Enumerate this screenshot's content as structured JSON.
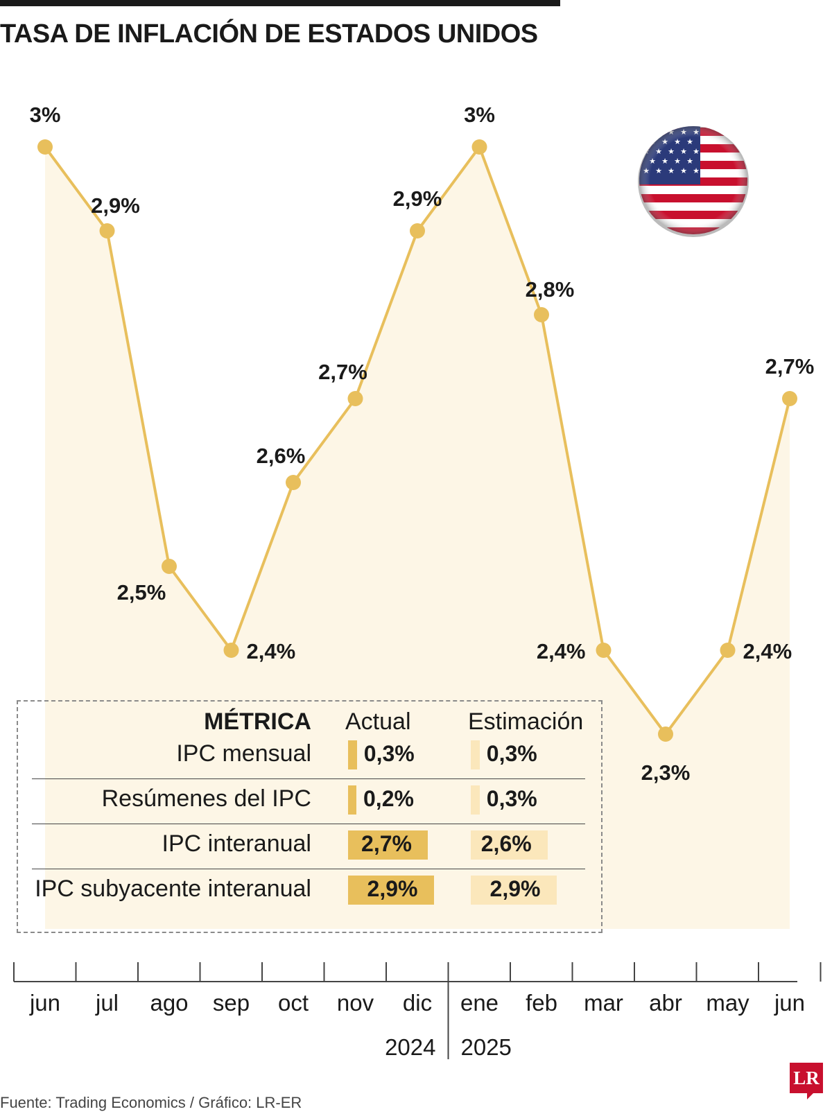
{
  "title": "TASA DE INFLACIÓN DE ESTADOS UNIDOS",
  "chart_data": {
    "type": "area",
    "title": "TASA DE INFLACIÓN DE ESTADOS UNIDOS",
    "categories": [
      "jun",
      "jul",
      "ago",
      "sep",
      "oct",
      "nov",
      "dic",
      "ene",
      "feb",
      "mar",
      "abr",
      "may",
      "jun"
    ],
    "years": [
      "2024",
      "2025"
    ],
    "series": [
      {
        "values": [
          3.0,
          2.9,
          2.5,
          2.4,
          2.6,
          2.7,
          2.9,
          3.0,
          2.8,
          2.4,
          2.3,
          2.4,
          2.7
        ]
      }
    ],
    "value_labels": [
      "3%",
      "2,9%",
      "2,5%",
      "2,4%",
      "2,6%",
      "2,7%",
      "2,9%",
      "3%",
      "2,8%",
      "2,4%",
      "2,3%",
      "2,4%",
      "2,7%"
    ],
    "unit": "%",
    "grid": false,
    "line_color": "#e8bf5c",
    "fill_color": "#fdf6e6"
  },
  "metrics": {
    "header": {
      "metric": "MÉTRICA",
      "actual": "Actual",
      "estimate": "Estimación"
    },
    "rows": [
      {
        "label": "IPC mensual",
        "actual": "0,3%",
        "estimate": "0,3%",
        "actual_value": 0.3,
        "estimate_value": 0.3
      },
      {
        "label": "Resúmenes del IPC",
        "actual": "0,2%",
        "estimate": "0,3%",
        "actual_value": 0.2,
        "estimate_value": 0.3
      },
      {
        "label": "IPC interanual",
        "actual": "2,7%",
        "estimate": "2,6%",
        "actual_value": 2.7,
        "estimate_value": 2.6
      },
      {
        "label": "IPC subyacente interanual",
        "actual": "2,9%",
        "estimate": "2,9%",
        "actual_value": 2.9,
        "estimate_value": 2.9
      }
    ],
    "colors": {
      "actual": "#e8bf5c",
      "estimate": "#fbe7bb"
    }
  },
  "flag_icon": "us-flag-icon",
  "source": "Fuente: Trading Economics / Gráfico: LR-ER",
  "logo": "LR"
}
